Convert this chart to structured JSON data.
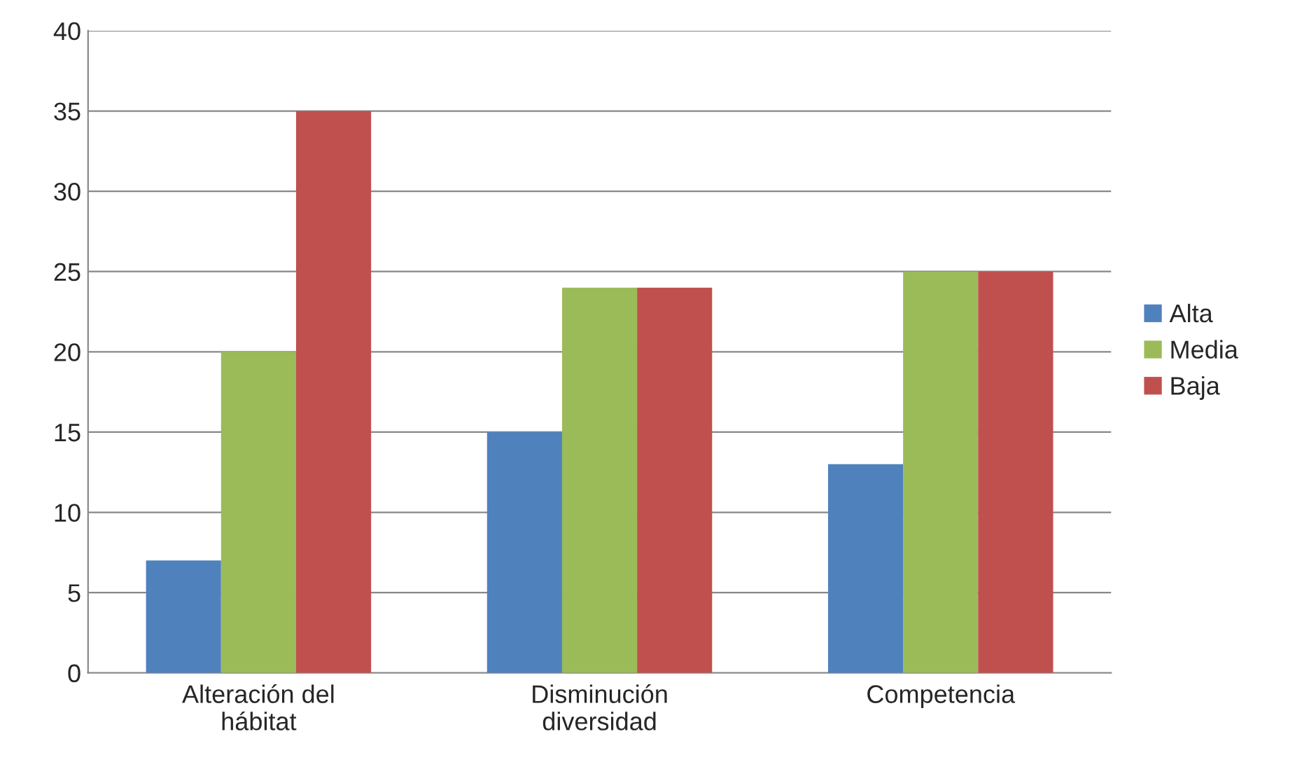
{
  "chart_data": {
    "type": "bar",
    "categories": [
      "Alteración del\nhábitat",
      "Disminución\ndiversidad",
      "Competencia"
    ],
    "series": [
      {
        "name": "Alta",
        "color": "#4f81bd",
        "values": [
          7,
          15,
          13
        ]
      },
      {
        "name": "Media",
        "color": "#9bbb59",
        "values": [
          20,
          24,
          25
        ]
      },
      {
        "name": "Baja",
        "color": "#c0504d",
        "values": [
          35,
          24,
          25
        ]
      }
    ],
    "ylim": [
      0,
      40
    ],
    "yticks": [
      0,
      5,
      10,
      15,
      20,
      25,
      30,
      35,
      40
    ],
    "grid": "y",
    "legend": "right"
  }
}
